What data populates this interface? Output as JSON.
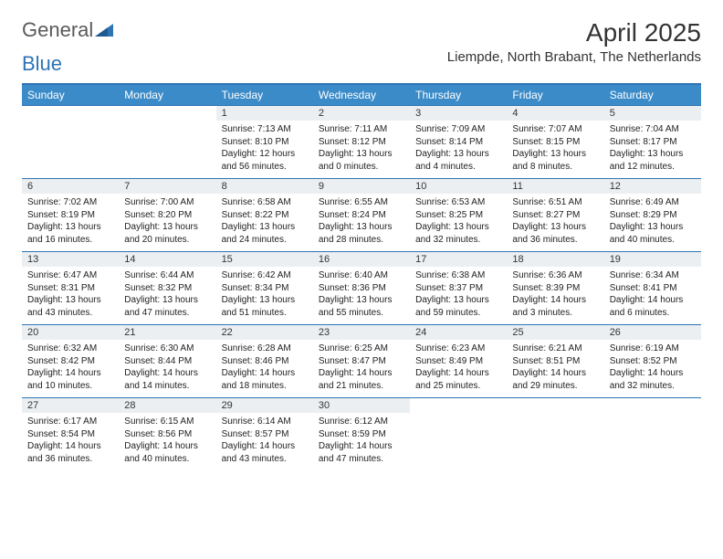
{
  "logo": {
    "text1": "General",
    "text2": "Blue"
  },
  "title": "April 2025",
  "location": "Liempde, North Brabant, The Netherlands",
  "colors": {
    "header_bg": "#3b8bc8",
    "header_border": "#2e74b5",
    "daynum_bg": "#eceff1",
    "text": "#333333"
  },
  "weekdays": [
    "Sunday",
    "Monday",
    "Tuesday",
    "Wednesday",
    "Thursday",
    "Friday",
    "Saturday"
  ],
  "weeks": [
    [
      null,
      null,
      {
        "n": "1",
        "sr": "Sunrise: 7:13 AM",
        "ss": "Sunset: 8:10 PM",
        "dl": "Daylight: 12 hours and 56 minutes."
      },
      {
        "n": "2",
        "sr": "Sunrise: 7:11 AM",
        "ss": "Sunset: 8:12 PM",
        "dl": "Daylight: 13 hours and 0 minutes."
      },
      {
        "n": "3",
        "sr": "Sunrise: 7:09 AM",
        "ss": "Sunset: 8:14 PM",
        "dl": "Daylight: 13 hours and 4 minutes."
      },
      {
        "n": "4",
        "sr": "Sunrise: 7:07 AM",
        "ss": "Sunset: 8:15 PM",
        "dl": "Daylight: 13 hours and 8 minutes."
      },
      {
        "n": "5",
        "sr": "Sunrise: 7:04 AM",
        "ss": "Sunset: 8:17 PM",
        "dl": "Daylight: 13 hours and 12 minutes."
      }
    ],
    [
      {
        "n": "6",
        "sr": "Sunrise: 7:02 AM",
        "ss": "Sunset: 8:19 PM",
        "dl": "Daylight: 13 hours and 16 minutes."
      },
      {
        "n": "7",
        "sr": "Sunrise: 7:00 AM",
        "ss": "Sunset: 8:20 PM",
        "dl": "Daylight: 13 hours and 20 minutes."
      },
      {
        "n": "8",
        "sr": "Sunrise: 6:58 AM",
        "ss": "Sunset: 8:22 PM",
        "dl": "Daylight: 13 hours and 24 minutes."
      },
      {
        "n": "9",
        "sr": "Sunrise: 6:55 AM",
        "ss": "Sunset: 8:24 PM",
        "dl": "Daylight: 13 hours and 28 minutes."
      },
      {
        "n": "10",
        "sr": "Sunrise: 6:53 AM",
        "ss": "Sunset: 8:25 PM",
        "dl": "Daylight: 13 hours and 32 minutes."
      },
      {
        "n": "11",
        "sr": "Sunrise: 6:51 AM",
        "ss": "Sunset: 8:27 PM",
        "dl": "Daylight: 13 hours and 36 minutes."
      },
      {
        "n": "12",
        "sr": "Sunrise: 6:49 AM",
        "ss": "Sunset: 8:29 PM",
        "dl": "Daylight: 13 hours and 40 minutes."
      }
    ],
    [
      {
        "n": "13",
        "sr": "Sunrise: 6:47 AM",
        "ss": "Sunset: 8:31 PM",
        "dl": "Daylight: 13 hours and 43 minutes."
      },
      {
        "n": "14",
        "sr": "Sunrise: 6:44 AM",
        "ss": "Sunset: 8:32 PM",
        "dl": "Daylight: 13 hours and 47 minutes."
      },
      {
        "n": "15",
        "sr": "Sunrise: 6:42 AM",
        "ss": "Sunset: 8:34 PM",
        "dl": "Daylight: 13 hours and 51 minutes."
      },
      {
        "n": "16",
        "sr": "Sunrise: 6:40 AM",
        "ss": "Sunset: 8:36 PM",
        "dl": "Daylight: 13 hours and 55 minutes."
      },
      {
        "n": "17",
        "sr": "Sunrise: 6:38 AM",
        "ss": "Sunset: 8:37 PM",
        "dl": "Daylight: 13 hours and 59 minutes."
      },
      {
        "n": "18",
        "sr": "Sunrise: 6:36 AM",
        "ss": "Sunset: 8:39 PM",
        "dl": "Daylight: 14 hours and 3 minutes."
      },
      {
        "n": "19",
        "sr": "Sunrise: 6:34 AM",
        "ss": "Sunset: 8:41 PM",
        "dl": "Daylight: 14 hours and 6 minutes."
      }
    ],
    [
      {
        "n": "20",
        "sr": "Sunrise: 6:32 AM",
        "ss": "Sunset: 8:42 PM",
        "dl": "Daylight: 14 hours and 10 minutes."
      },
      {
        "n": "21",
        "sr": "Sunrise: 6:30 AM",
        "ss": "Sunset: 8:44 PM",
        "dl": "Daylight: 14 hours and 14 minutes."
      },
      {
        "n": "22",
        "sr": "Sunrise: 6:28 AM",
        "ss": "Sunset: 8:46 PM",
        "dl": "Daylight: 14 hours and 18 minutes."
      },
      {
        "n": "23",
        "sr": "Sunrise: 6:25 AM",
        "ss": "Sunset: 8:47 PM",
        "dl": "Daylight: 14 hours and 21 minutes."
      },
      {
        "n": "24",
        "sr": "Sunrise: 6:23 AM",
        "ss": "Sunset: 8:49 PM",
        "dl": "Daylight: 14 hours and 25 minutes."
      },
      {
        "n": "25",
        "sr": "Sunrise: 6:21 AM",
        "ss": "Sunset: 8:51 PM",
        "dl": "Daylight: 14 hours and 29 minutes."
      },
      {
        "n": "26",
        "sr": "Sunrise: 6:19 AM",
        "ss": "Sunset: 8:52 PM",
        "dl": "Daylight: 14 hours and 32 minutes."
      }
    ],
    [
      {
        "n": "27",
        "sr": "Sunrise: 6:17 AM",
        "ss": "Sunset: 8:54 PM",
        "dl": "Daylight: 14 hours and 36 minutes."
      },
      {
        "n": "28",
        "sr": "Sunrise: 6:15 AM",
        "ss": "Sunset: 8:56 PM",
        "dl": "Daylight: 14 hours and 40 minutes."
      },
      {
        "n": "29",
        "sr": "Sunrise: 6:14 AM",
        "ss": "Sunset: 8:57 PM",
        "dl": "Daylight: 14 hours and 43 minutes."
      },
      {
        "n": "30",
        "sr": "Sunrise: 6:12 AM",
        "ss": "Sunset: 8:59 PM",
        "dl": "Daylight: 14 hours and 47 minutes."
      },
      null,
      null,
      null
    ]
  ]
}
